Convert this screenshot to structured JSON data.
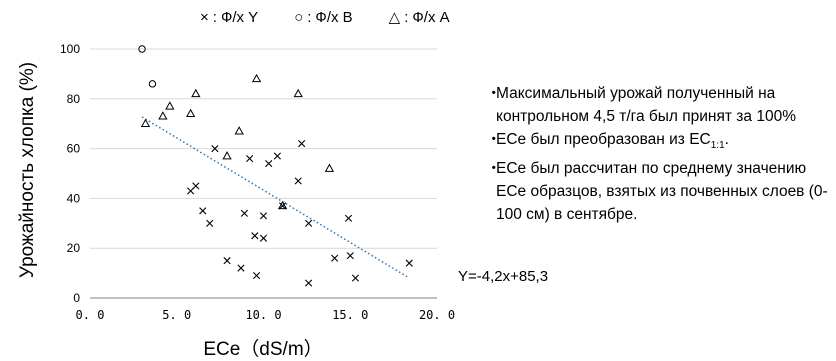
{
  "legend": [
    {
      "marker": "×",
      "label": "Ф/х Y"
    },
    {
      "marker": "○",
      "label": "Ф/х B"
    },
    {
      "marker": "△",
      "label": "Ф/х A"
    }
  ],
  "notes": [
    {
      "text": "Максимальный урожай полученный на контрольном 4,5 т/га был принят за 100%"
    },
    {
      "text_before": "ECe был преобразован из EC",
      "subscript": "1:1",
      "text_after": "."
    },
    {
      "text": "ECe был рассчитан по среднему значению ECe образцов, взятых из почвенных слоев (0-100 см) в сентябре."
    }
  ],
  "colors": {
    "trendline": "#2e75b6",
    "grid": "#d9d9d9",
    "axis": "#808080",
    "marker": "#000000"
  },
  "chart_data": {
    "type": "scatter",
    "xlabel": "ECe（dS/m）",
    "ylabel": "Урожайность хлопка (%)",
    "xlim": [
      0,
      20
    ],
    "ylim": [
      0,
      100
    ],
    "xticks": [
      "0. 0",
      "5. 0",
      "10. 0",
      "15. 0",
      "20. 0"
    ],
    "yticks": [
      "0",
      "20",
      "40",
      "60",
      "80",
      "100"
    ],
    "grid": "horizontal",
    "legend_position": "top",
    "series": [
      {
        "name": "Ф/х Y",
        "marker": "x",
        "points": [
          [
            5.8,
            43
          ],
          [
            6.1,
            45
          ],
          [
            6.5,
            35
          ],
          [
            6.9,
            30
          ],
          [
            7.2,
            60
          ],
          [
            7.9,
            15
          ],
          [
            8.7,
            12
          ],
          [
            8.9,
            34
          ],
          [
            9.2,
            56
          ],
          [
            9.5,
            25
          ],
          [
            9.6,
            9
          ],
          [
            10.0,
            24
          ],
          [
            10.0,
            33
          ],
          [
            10.3,
            54
          ],
          [
            10.8,
            57
          ],
          [
            11.1,
            37
          ],
          [
            12.0,
            47
          ],
          [
            12.2,
            62
          ],
          [
            12.6,
            30
          ],
          [
            12.6,
            6
          ],
          [
            14.1,
            16
          ],
          [
            14.9,
            32
          ],
          [
            15.0,
            17
          ],
          [
            15.3,
            8
          ],
          [
            18.4,
            14
          ]
        ]
      },
      {
        "name": "Ф/х B",
        "marker": "circle",
        "points": [
          [
            3.0,
            100
          ],
          [
            3.6,
            86
          ]
        ]
      },
      {
        "name": "Ф/х A",
        "marker": "triangle",
        "points": [
          [
            3.2,
            70
          ],
          [
            4.2,
            73
          ],
          [
            4.6,
            77
          ],
          [
            5.8,
            74
          ],
          [
            6.1,
            82
          ],
          [
            7.9,
            57
          ],
          [
            8.6,
            67
          ],
          [
            9.6,
            88
          ],
          [
            11.1,
            37
          ],
          [
            12.0,
            82
          ],
          [
            13.8,
            52
          ]
        ]
      }
    ],
    "trendline": {
      "equation": "Y=-4,2x+85,3",
      "slope": -4.2,
      "intercept": 85.3,
      "x_range": [
        3.0,
        18.4
      ],
      "style": "dotted"
    }
  }
}
